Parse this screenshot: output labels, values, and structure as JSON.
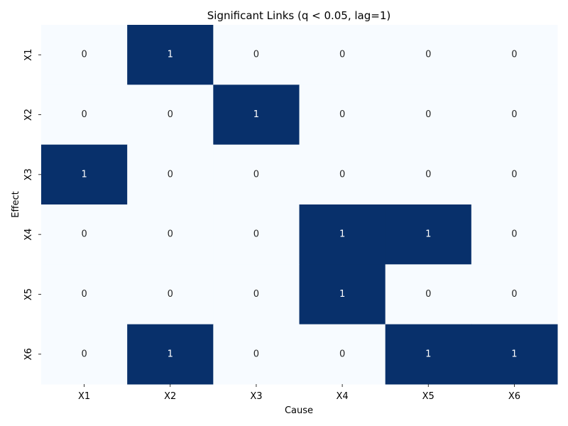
{
  "chart_data": {
    "type": "heatmap",
    "title": "Significant Links (q < 0.05, lag=1)",
    "xlabel": "Cause",
    "ylabel": "Effect",
    "x_categories": [
      "X1",
      "X2",
      "X3",
      "X4",
      "X5",
      "X6"
    ],
    "y_categories": [
      "X1",
      "X2",
      "X3",
      "X4",
      "X5",
      "X6"
    ],
    "values": [
      [
        0,
        1,
        0,
        0,
        0,
        0
      ],
      [
        0,
        0,
        1,
        0,
        0,
        0
      ],
      [
        1,
        0,
        0,
        0,
        0,
        0
      ],
      [
        0,
        0,
        0,
        1,
        1,
        0
      ],
      [
        0,
        0,
        0,
        1,
        0,
        0
      ],
      [
        0,
        1,
        0,
        0,
        1,
        1
      ]
    ],
    "colorscale": {
      "low": "#f7fbff",
      "high": "#08306b"
    },
    "value_range": [
      0,
      1
    ],
    "annotated": true,
    "colorbar": false,
    "grid": false
  }
}
